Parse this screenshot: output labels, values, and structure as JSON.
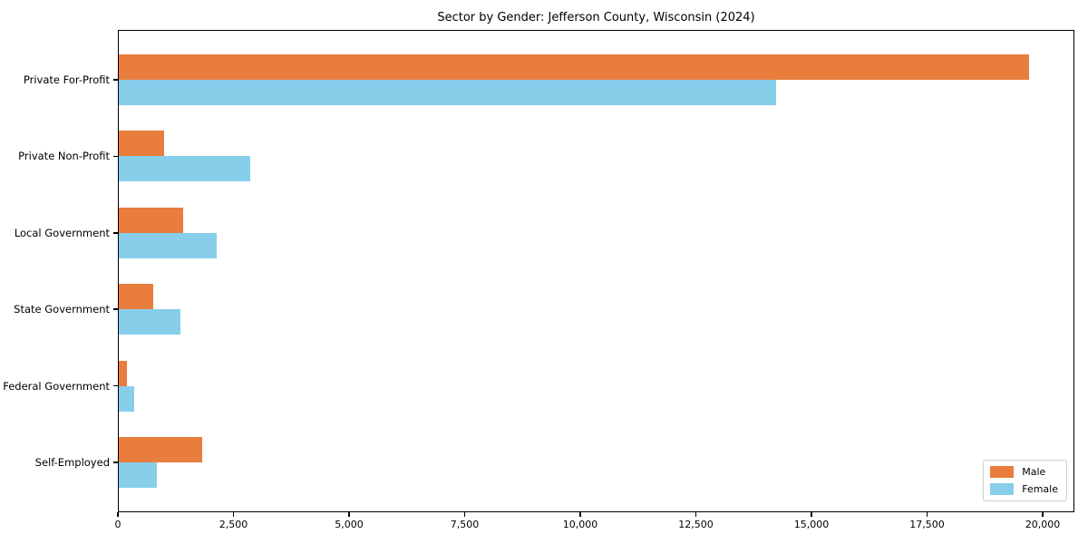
{
  "chart_data": {
    "type": "bar",
    "orientation": "horizontal",
    "title": "Sector by Gender: Jefferson County, Wisconsin (2024)",
    "categories": [
      "Private For-Profit",
      "Private Non-Profit",
      "Local Government",
      "State Government",
      "Federal Government",
      "Self-Employed"
    ],
    "series": [
      {
        "name": "Male",
        "color": "#e87d3d",
        "values": [
          19700,
          1000,
          1420,
          760,
          200,
          1820
        ]
      },
      {
        "name": "Female",
        "color": "#87ceeb",
        "values": [
          14230,
          2860,
          2130,
          1360,
          360,
          840
        ]
      }
    ],
    "xlabel": "",
    "ylabel": "",
    "xlim": [
      0,
      20685
    ],
    "xticks": [
      0,
      2500,
      5000,
      7500,
      10000,
      12500,
      15000,
      17500,
      20000
    ],
    "xtick_labels": [
      "0",
      "2,500",
      "5,000",
      "7,500",
      "10,000",
      "12,500",
      "15,000",
      "17,500",
      "20,000"
    ],
    "legend_position": "lower right",
    "grid": false,
    "spine_color": "#000000",
    "background_color": "#ffffff"
  }
}
